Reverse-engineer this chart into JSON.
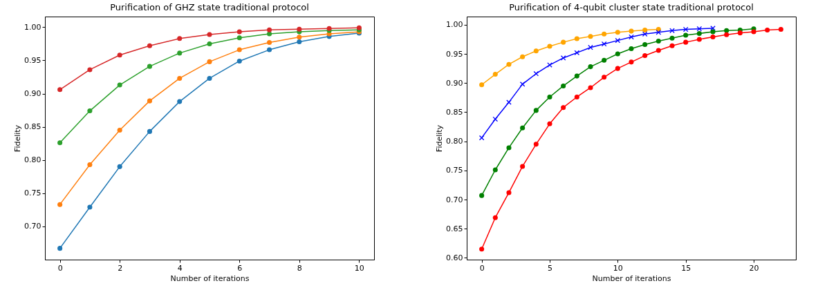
{
  "chart_data": [
    {
      "type": "line",
      "title": "Purification of GHZ state traditional protocol",
      "xlabel": "Number of iterations",
      "ylabel": "Fidelity",
      "marker": "circle",
      "grid": false,
      "x": [
        0,
        1,
        2,
        3,
        4,
        5,
        6,
        7,
        8,
        9,
        10
      ],
      "xlim": [
        -0.5,
        10.5
      ],
      "xticks": [
        0,
        2,
        4,
        6,
        8,
        10
      ],
      "ylim": [
        0.65,
        1.016
      ],
      "yticks": [
        {
          "value": 0.7,
          "label": "0.70"
        },
        {
          "value": 0.75,
          "label": "0.75"
        },
        {
          "value": 0.8,
          "label": "0.80"
        },
        {
          "value": 0.85,
          "label": "0.85"
        },
        {
          "value": 0.9,
          "label": "0.90"
        },
        {
          "value": 0.95,
          "label": "0.95"
        },
        {
          "value": 1.0,
          "label": "1.00"
        }
      ],
      "series": [
        {
          "color": "#1f77b4",
          "values": [
            0.667,
            0.729,
            0.79,
            0.843,
            0.888,
            0.923,
            0.949,
            0.966,
            0.978,
            0.986,
            0.991
          ]
        },
        {
          "color": "#ff7f0e",
          "values": [
            0.733,
            0.793,
            0.845,
            0.889,
            0.923,
            0.948,
            0.966,
            0.977,
            0.985,
            0.99,
            0.993
          ]
        },
        {
          "color": "#2ca02c",
          "values": [
            0.826,
            0.874,
            0.913,
            0.941,
            0.961,
            0.975,
            0.984,
            0.99,
            0.993,
            0.995,
            0.996
          ]
        },
        {
          "color": "#d62728",
          "values": [
            0.906,
            0.936,
            0.958,
            0.972,
            0.983,
            0.989,
            0.993,
            0.996,
            0.997,
            0.998,
            0.999
          ]
        }
      ]
    },
    {
      "type": "line",
      "title": "Purification of 4-qubit cluster state traditional protocol",
      "xlabel": "Number of iterations",
      "ylabel": "Fidelity",
      "grid": false,
      "xlim": [
        -1.1,
        23.1
      ],
      "xticks": [
        0,
        5,
        10,
        15,
        20
      ],
      "ylim": [
        0.597,
        1.014
      ],
      "yticks": [
        {
          "value": 0.6,
          "label": "0.60"
        },
        {
          "value": 0.65,
          "label": "0.65"
        },
        {
          "value": 0.7,
          "label": "0.70"
        },
        {
          "value": 0.75,
          "label": "0.75"
        },
        {
          "value": 0.8,
          "label": "0.80"
        },
        {
          "value": 0.85,
          "label": "0.85"
        },
        {
          "value": 0.9,
          "label": "0.90"
        },
        {
          "value": 0.95,
          "label": "0.95"
        },
        {
          "value": 1.0,
          "label": "1.00"
        }
      ],
      "series": [
        {
          "color": "#ffa500",
          "marker": "circle",
          "x": [
            0,
            1,
            2,
            3,
            4,
            5,
            6,
            7,
            8,
            9,
            10,
            11,
            12,
            13
          ],
          "values": [
            0.897,
            0.915,
            0.932,
            0.945,
            0.955,
            0.963,
            0.97,
            0.976,
            0.98,
            0.984,
            0.987,
            0.989,
            0.991,
            0.992
          ]
        },
        {
          "color": "#0000ff",
          "marker": "cross",
          "x": [
            0,
            1,
            2,
            3,
            4,
            5,
            6,
            7,
            8,
            9,
            10,
            11,
            12,
            13,
            14,
            15,
            16,
            17
          ],
          "values": [
            0.806,
            0.838,
            0.867,
            0.898,
            0.916,
            0.931,
            0.943,
            0.952,
            0.961,
            0.967,
            0.973,
            0.979,
            0.984,
            0.987,
            0.99,
            0.992,
            0.993,
            0.994
          ]
        },
        {
          "color": "#008000",
          "marker": "circle",
          "x": [
            0,
            1,
            2,
            3,
            4,
            5,
            6,
            7,
            8,
            9,
            10,
            11,
            12,
            13,
            14,
            15,
            16,
            17,
            18,
            19,
            20
          ],
          "values": [
            0.707,
            0.751,
            0.789,
            0.823,
            0.853,
            0.876,
            0.895,
            0.912,
            0.928,
            0.939,
            0.95,
            0.959,
            0.966,
            0.972,
            0.977,
            0.982,
            0.985,
            0.988,
            0.99,
            0.991,
            0.993
          ]
        },
        {
          "color": "#ff0000",
          "marker": "circle",
          "x": [
            0,
            1,
            2,
            3,
            4,
            5,
            6,
            7,
            8,
            9,
            10,
            11,
            12,
            13,
            14,
            15,
            16,
            17,
            18,
            19,
            20,
            21,
            22
          ],
          "values": [
            0.615,
            0.669,
            0.712,
            0.757,
            0.795,
            0.83,
            0.858,
            0.876,
            0.892,
            0.91,
            0.925,
            0.936,
            0.947,
            0.956,
            0.964,
            0.97,
            0.975,
            0.979,
            0.983,
            0.986,
            0.988,
            0.991,
            0.992
          ]
        }
      ]
    }
  ]
}
